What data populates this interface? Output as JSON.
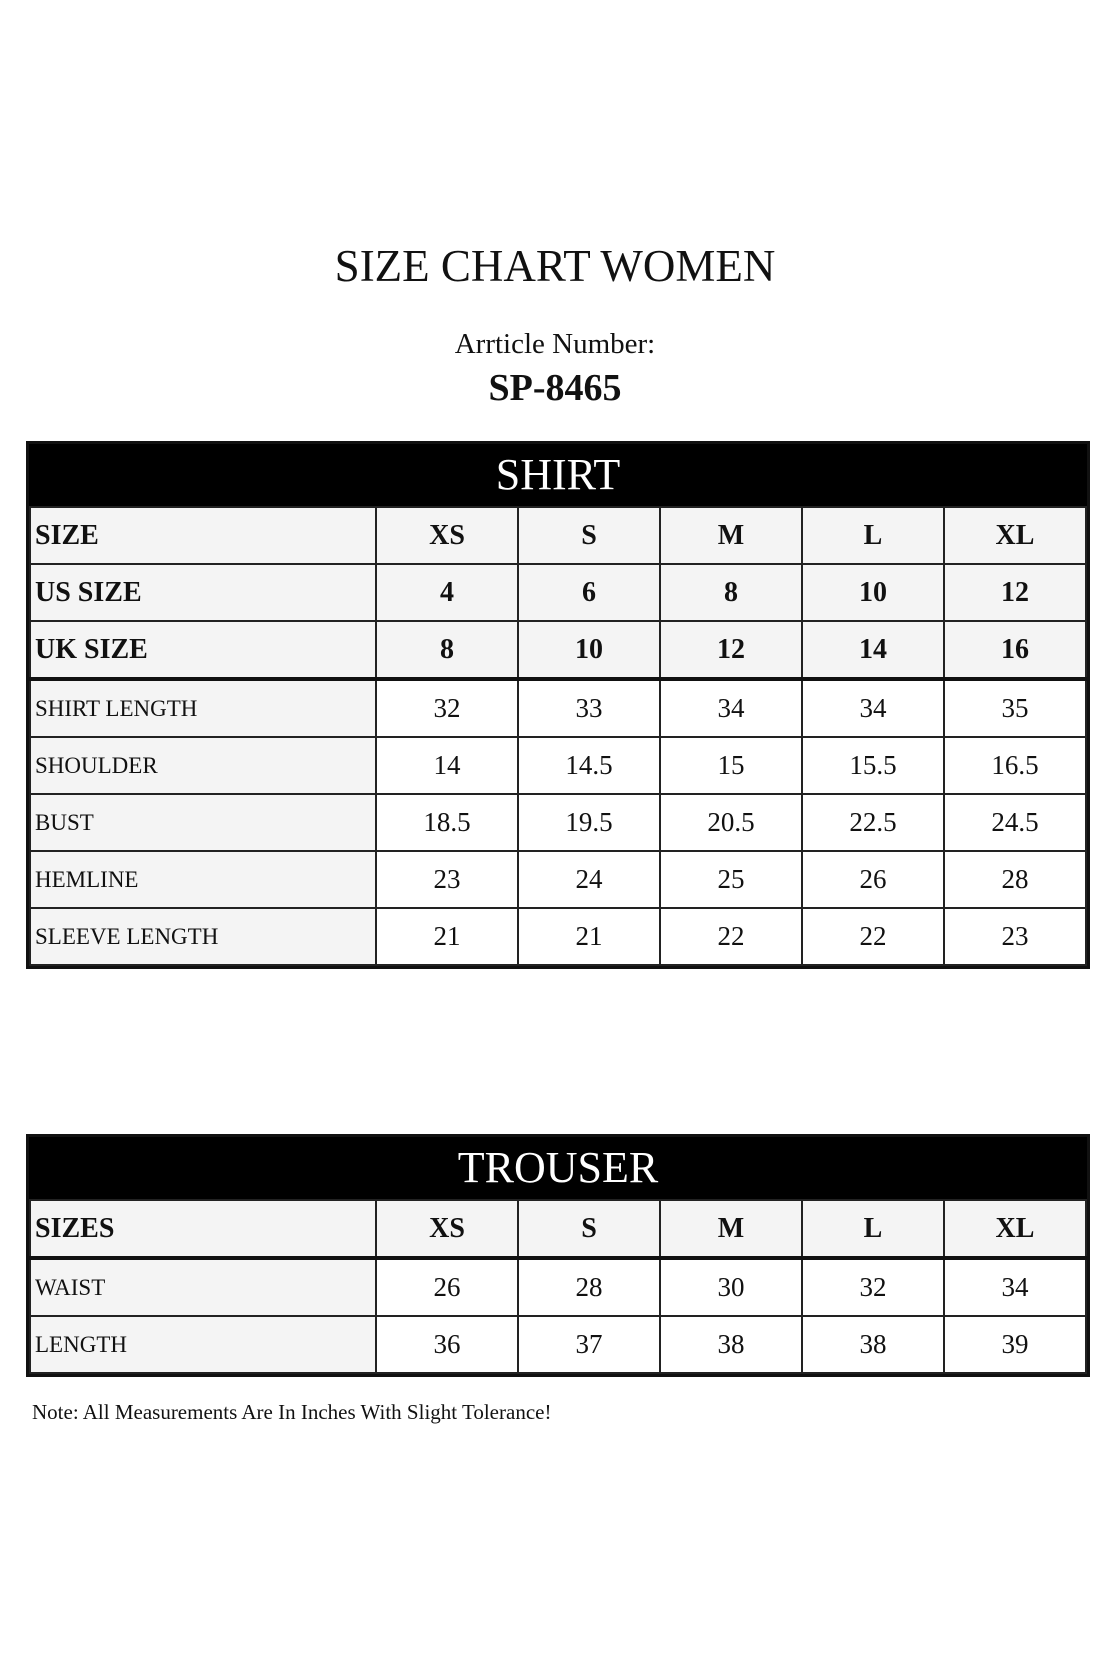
{
  "title": "SIZE CHART WOMEN",
  "article_label": "Arrticle Number:",
  "article_number": "SP-8465",
  "shirt": {
    "heading": "SHIRT",
    "head_rows": [
      {
        "label": "SIZE",
        "values": [
          "XS",
          "S",
          "M",
          "L",
          "XL"
        ]
      },
      {
        "label": "US SIZE",
        "values": [
          "4",
          "6",
          "8",
          "10",
          "12"
        ]
      },
      {
        "label": "UK SIZE",
        "values": [
          "8",
          "10",
          "12",
          "14",
          "16"
        ]
      }
    ],
    "rows": [
      {
        "label": "SHIRT LENGTH",
        "values": [
          "32",
          "33",
          "34",
          "34",
          "35"
        ]
      },
      {
        "label": "SHOULDER",
        "values": [
          "14",
          "14.5",
          "15",
          "15.5",
          "16.5"
        ]
      },
      {
        "label": "BUST",
        "values": [
          "18.5",
          "19.5",
          "20.5",
          "22.5",
          "24.5"
        ]
      },
      {
        "label": "HEMLINE",
        "values": [
          "23",
          "24",
          "25",
          "26",
          "28"
        ]
      },
      {
        "label": "SLEEVE LENGTH",
        "values": [
          "21",
          "21",
          "22",
          "22",
          "23"
        ]
      }
    ]
  },
  "trouser": {
    "heading": "TROUSER",
    "head_rows": [
      {
        "label": "SIZES",
        "values": [
          "XS",
          "S",
          "M",
          "L",
          "XL"
        ]
      }
    ],
    "rows": [
      {
        "label": "WAIST",
        "values": [
          "26",
          "28",
          "30",
          "32",
          "34"
        ]
      },
      {
        "label": "LENGTH",
        "values": [
          "36",
          "37",
          "38",
          "38",
          "39"
        ]
      }
    ]
  },
  "note": "Note: All Measurements Are In Inches With Slight Tolerance!"
}
